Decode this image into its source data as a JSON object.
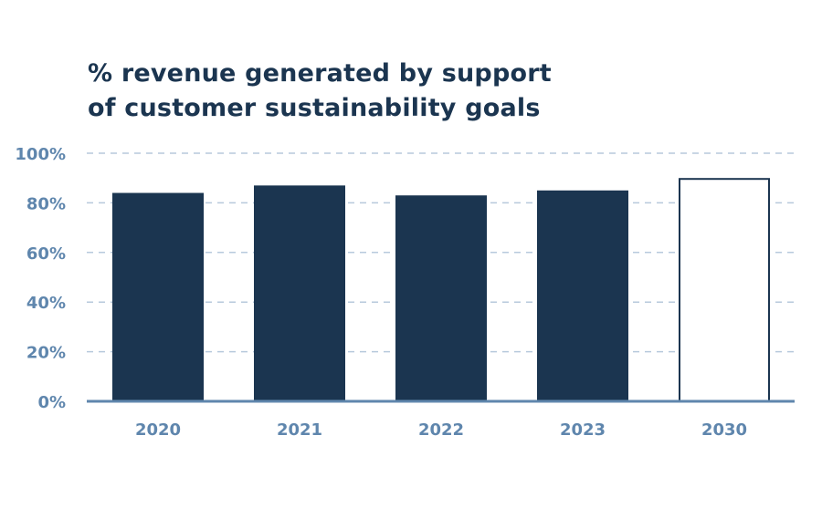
{
  "chart_data": {
    "type": "bar",
    "title_lines": [
      "% revenue generated by support",
      "of customer sustainability goals"
    ],
    "categories": [
      "2020",
      "2021",
      "2022",
      "2023",
      "2030"
    ],
    "values": [
      84,
      87,
      83,
      85,
      90
    ],
    "bar_styles": [
      "filled",
      "filled",
      "filled",
      "filled",
      "outline"
    ],
    "ylim": [
      0,
      100
    ],
    "yticks": [
      0,
      20,
      40,
      60,
      80,
      100
    ],
    "ytick_labels": [
      "0%",
      "20%",
      "40%",
      "60%",
      "80%",
      "100%"
    ],
    "grid": true,
    "colors": {
      "bar": "#1b3550",
      "axis": "#5f86ad",
      "grid": "#b7c9dc",
      "tick_text": "#5f86ad",
      "title": "#1b3550"
    }
  }
}
